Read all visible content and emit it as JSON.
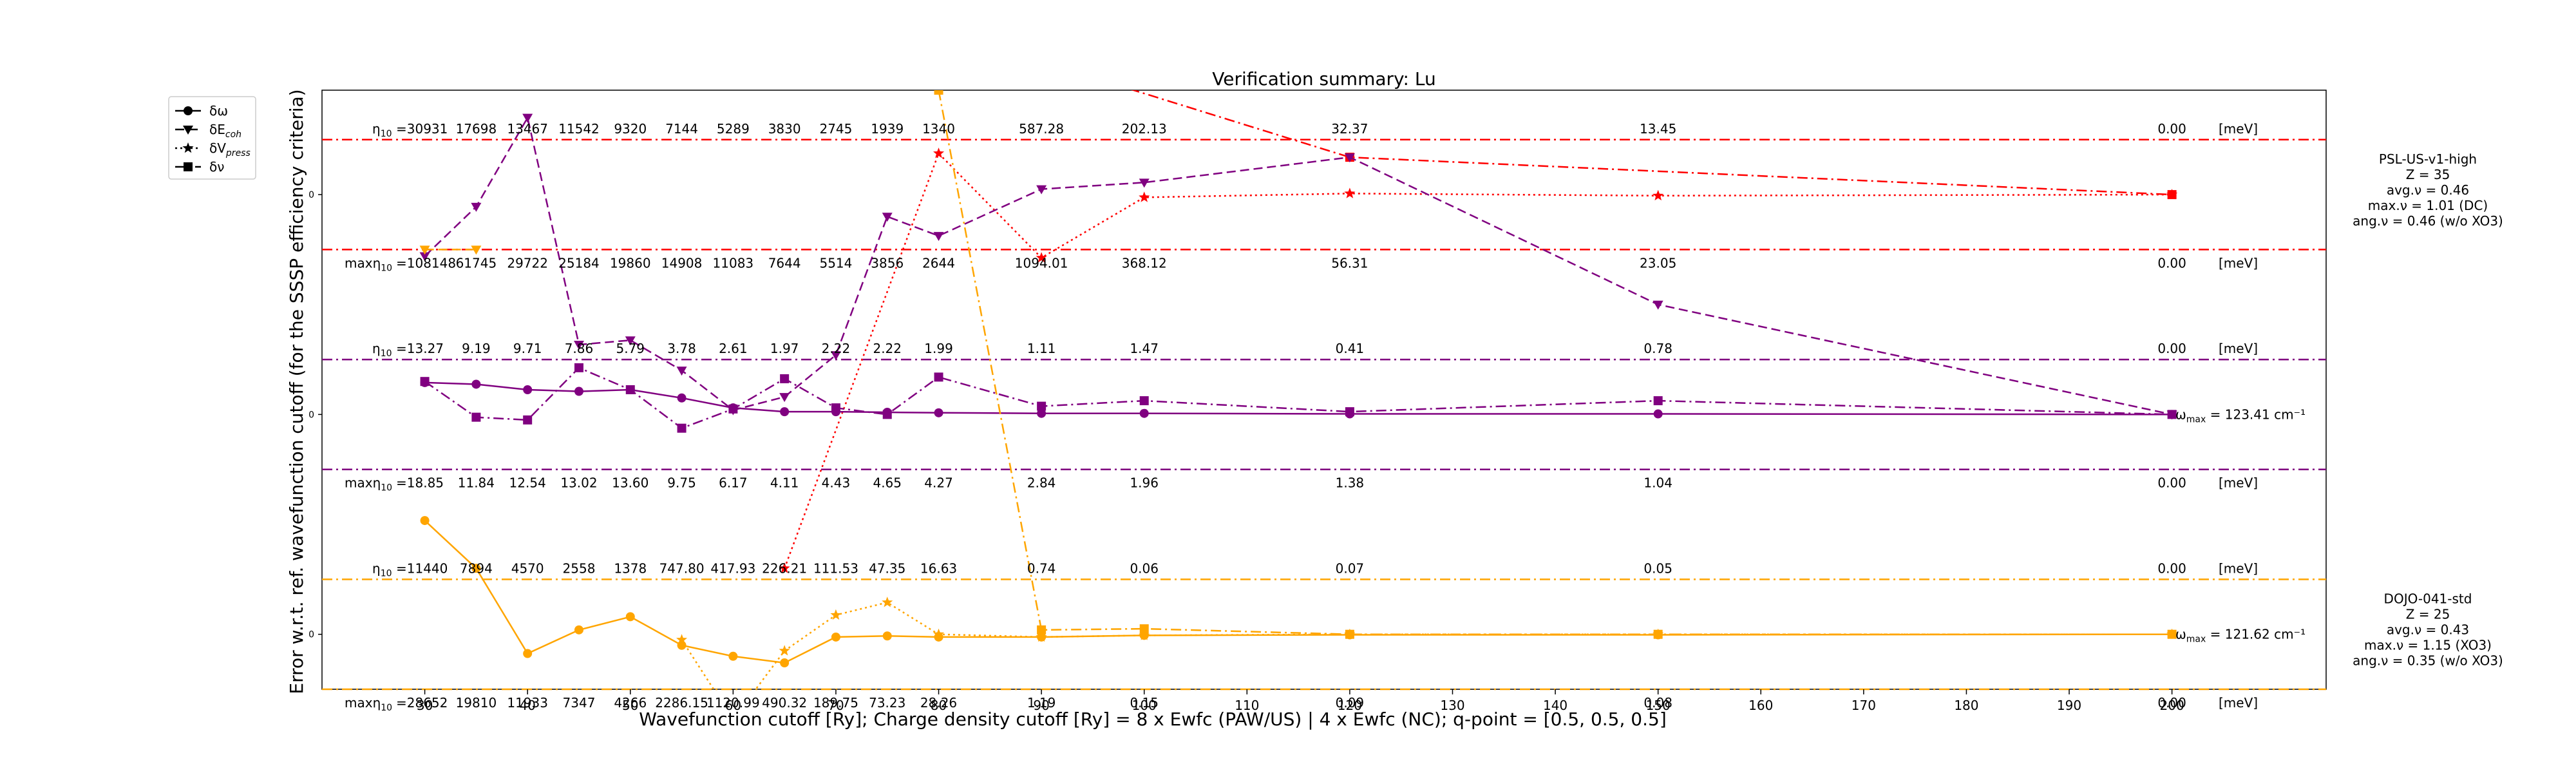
{
  "chart_data": {
    "type": "line",
    "title": "Verification summary: Lu",
    "xlabel": "Wavefunction cutoff [Ry]; Charge density cutoff [Ry] = 8 x Ewfc (PAW/US) | 4 x Ewfc (NC); q-point = [0.5, 0.5, 0.5]",
    "ylabel": "Error w.r.t. ref. wavefunction cutoff (for the SSSP efficiency criteria)",
    "xlim": [
      20,
      215
    ],
    "xticks": [
      30,
      40,
      50,
      60,
      70,
      80,
      90,
      100,
      110,
      120,
      130,
      140,
      150,
      160,
      170,
      180,
      190,
      200
    ],
    "ytick_label": "0",
    "legend_position": "upper-left (outside axes)",
    "legend": [
      {
        "label": "δω",
        "style": "solid",
        "marker": "circle"
      },
      {
        "label": "δE_coh",
        "style": "dashed",
        "marker": "triangle-down"
      },
      {
        "label": "δV_press",
        "style": "dotted",
        "marker": "star"
      },
      {
        "label": "δν",
        "style": "dashdot",
        "marker": "square"
      }
    ],
    "cutoffs": [
      30,
      35,
      40,
      45,
      50,
      55,
      60,
      65,
      70,
      75,
      80,
      90,
      100,
      120,
      150,
      200
    ],
    "unit_label": "[meV]",
    "panels": [
      {
        "id": "psl",
        "color": "#ff0000",
        "row_center": 0,
        "row_half": 1,
        "info": [
          "PSL-US-v1-high",
          "Z = 35",
          "avg.ν = 0.46",
          "max.ν = 1.01 (DC)",
          "ang.ν = 0.46 (w/o XO3)"
        ],
        "eta_label": "η",
        "eta_values": [
          "=30931",
          "17698",
          "13467",
          "11542",
          "9320",
          "7144",
          "5289",
          "3830",
          "2745",
          "1939",
          "1340",
          "587.28",
          "202.13",
          "32.37",
          "13.45",
          "0.00"
        ],
        "max_label": "maxη",
        "max_values": [
          "=108148",
          "61745",
          "29722",
          "25184",
          "19860",
          "14908",
          "11083",
          "7644",
          "5514",
          "3856",
          "2644",
          "1094.01",
          "368.12",
          "56.31",
          "23.05",
          "0.00"
        ],
        "omega_label": ""
      },
      {
        "id": "psl-omega",
        "color": "#800080",
        "row_center": -4,
        "row_half": 1,
        "info": [],
        "eta_label": "η",
        "eta_values": [
          "=13.27",
          "9.19",
          "9.71",
          "7.86",
          "5.79",
          "3.78",
          "2.61",
          "1.97",
          "2.22",
          "2.22",
          "1.99",
          "1.11",
          "1.47",
          "0.41",
          "0.78",
          "0.00"
        ],
        "max_label": "maxη",
        "max_values": [
          "=18.85",
          "11.84",
          "12.54",
          "13.02",
          "13.60",
          "9.75",
          "6.17",
          "4.11",
          "4.43",
          "4.65",
          "4.27",
          "2.84",
          "1.96",
          "1.38",
          "1.04",
          "0.00"
        ],
        "omega_label": "ω_max = 123.41 cm⁻¹"
      },
      {
        "id": "dojo",
        "color": "#ffa500",
        "row_center": -8,
        "row_half": 1,
        "info": [
          "DOJO-041-std",
          "Z = 25",
          "avg.ν = 0.43",
          "max.ν = 1.15 (XO3)",
          "ang.ν = 0.35 (w/o XO3)"
        ],
        "eta_label": "η",
        "eta_values": [
          "=11440",
          "7894",
          "4570",
          "2558",
          "1378",
          "747.80",
          "417.93",
          "226.21",
          "111.53",
          "47.35",
          "16.63",
          "0.74",
          "0.06",
          "0.07",
          "0.05",
          "0.00"
        ],
        "max_label": "maxη",
        "max_values": [
          "=28652",
          "19810",
          "11933",
          "7347",
          "4266",
          "2286.15",
          "1120.99",
          "490.32",
          "189.75",
          "73.23",
          "28.26",
          "1.19",
          "0.15",
          "0.09",
          "0.08",
          "0.00"
        ],
        "omega_label": "ω_max = 121.62 cm⁻¹"
      }
    ],
    "series": [
      {
        "panel": 0,
        "metric": "δν",
        "color": "#ff0000",
        "style": "dashdot",
        "marker": "square",
        "x": [
          80,
          120,
          200
        ],
        "y": [
          3.0,
          0.68,
          0.0
        ]
      },
      {
        "panel": 0,
        "metric": "δV_press",
        "color": "#ff0000",
        "style": "dotted",
        "marker": "star",
        "x": [
          65,
          80,
          90,
          100,
          120,
          150,
          200
        ],
        "y": [
          -6.8,
          0.75,
          -1.15,
          -0.05,
          0.02,
          -0.02,
          0.0
        ]
      },
      {
        "panel": 0,
        "metric": "δE_coh",
        "color": "#800080",
        "style": "dashed",
        "marker": "triangle-down",
        "x": [
          30,
          35,
          40,
          45,
          50,
          55,
          60,
          65,
          70,
          75,
          80,
          90,
          100,
          120,
          150,
          200
        ],
        "y": [
          -1.12,
          -0.22,
          1.4,
          -2.73,
          -2.65,
          -3.2,
          -3.92,
          -3.68,
          -2.92,
          -0.4,
          -0.75,
          0.1,
          0.22,
          0.68,
          -2.0,
          -4.0
        ]
      },
      {
        "panel": 1,
        "metric": "δν",
        "color": "#800080",
        "style": "dashdot",
        "marker": "square",
        "x": [
          30,
          35,
          40,
          45,
          50,
          55,
          60,
          65,
          70,
          75,
          80,
          90,
          100,
          120,
          150,
          200
        ],
        "y": [
          0.6,
          -0.05,
          -0.1,
          0.85,
          0.45,
          -0.25,
          0.1,
          0.65,
          0.12,
          0.0,
          0.68,
          0.15,
          0.25,
          0.05,
          0.25,
          0.0
        ]
      },
      {
        "panel": 1,
        "metric": "δω",
        "color": "#800080",
        "style": "solid",
        "marker": "circle",
        "x": [
          30,
          35,
          40,
          45,
          50,
          55,
          60,
          65,
          70,
          75,
          80,
          90,
          100,
          120,
          150,
          200
        ],
        "y": [
          0.58,
          0.55,
          0.45,
          0.42,
          0.45,
          0.3,
          0.12,
          0.05,
          0.05,
          0.04,
          0.03,
          0.02,
          0.02,
          0.01,
          0.01,
          0.0
        ]
      },
      {
        "panel": 2,
        "metric": "δω",
        "color": "#ffa500",
        "style": "solid",
        "marker": "circle",
        "x": [
          30,
          35,
          40,
          45,
          50,
          55,
          60,
          65,
          70,
          75,
          80,
          90,
          100,
          120,
          150,
          200
        ],
        "y": [
          2.07,
          1.2,
          -0.35,
          0.08,
          0.32,
          -0.2,
          -0.4,
          -0.52,
          -0.05,
          -0.03,
          -0.05,
          -0.05,
          -0.02,
          -0.01,
          -0.01,
          0.0
        ]
      },
      {
        "panel": 2,
        "metric": "δν",
        "color": "#ffa500",
        "style": "dashdot",
        "marker": "square",
        "x": [
          80,
          90,
          100,
          120,
          150,
          200
        ],
        "y": [
          9.9,
          0.08,
          0.1,
          0.0,
          0.0,
          0.0
        ]
      },
      {
        "panel": 2,
        "metric": "δV_press",
        "color": "#ffa500",
        "style": "dotted",
        "marker": "star",
        "x": [
          55,
          60,
          65,
          70,
          75,
          80,
          90,
          100,
          120,
          150,
          200
        ],
        "y": [
          -0.1,
          -1.55,
          -0.3,
          0.35,
          0.58,
          0.0,
          -0.05,
          -0.02,
          0.0,
          0.0,
          0.0
        ]
      },
      {
        "panel": 2,
        "metric": "δE_coh",
        "color": "#ffa500",
        "style": "dashed",
        "marker": "triangle-down",
        "x": [
          30,
          35
        ],
        "y": [
          7.0,
          7.0
        ]
      }
    ]
  }
}
